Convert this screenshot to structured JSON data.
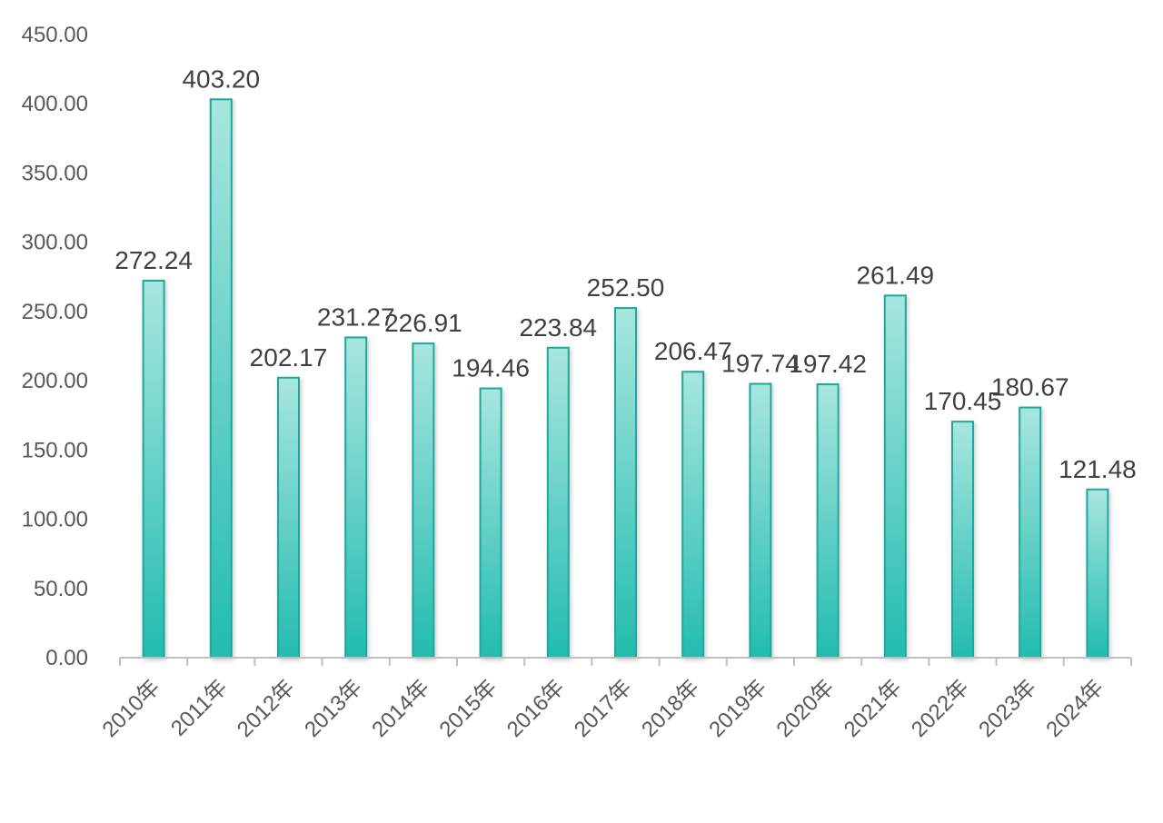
{
  "chart_data": {
    "type": "bar",
    "categories": [
      "2010年",
      "2011年",
      "2012年",
      "2013年",
      "2014年",
      "2015年",
      "2016年",
      "2017年",
      "2018年",
      "2019年",
      "2020年",
      "2021年",
      "2022年",
      "2023年",
      "2024年"
    ],
    "values": [
      272.24,
      403.2,
      202.17,
      231.27,
      226.91,
      194.46,
      223.84,
      252.5,
      206.47,
      197.74,
      197.42,
      261.49,
      170.45,
      180.67,
      121.48
    ],
    "value_labels": [
      "272.24",
      "403.20",
      "202.17",
      "231.27",
      "226.91",
      "194.46",
      "223.84",
      "252.50",
      "206.47",
      "197.74",
      "197.42",
      "261.49",
      "170.45",
      "180.67",
      "121.48"
    ],
    "y_ticks": [
      "0.00",
      "50.00",
      "100.00",
      "150.00",
      "200.00",
      "250.00",
      "300.00",
      "350.00",
      "400.00",
      "450.00"
    ],
    "ylim": [
      0,
      450
    ],
    "title": "",
    "xlabel": "",
    "ylabel": "",
    "grid": false,
    "legend": "none",
    "colors": {
      "bar_top": "#a8e6df",
      "bar_bottom": "#23bcb0",
      "bar_stroke": "#1fa89c",
      "axis": "#bfbfbf"
    }
  }
}
